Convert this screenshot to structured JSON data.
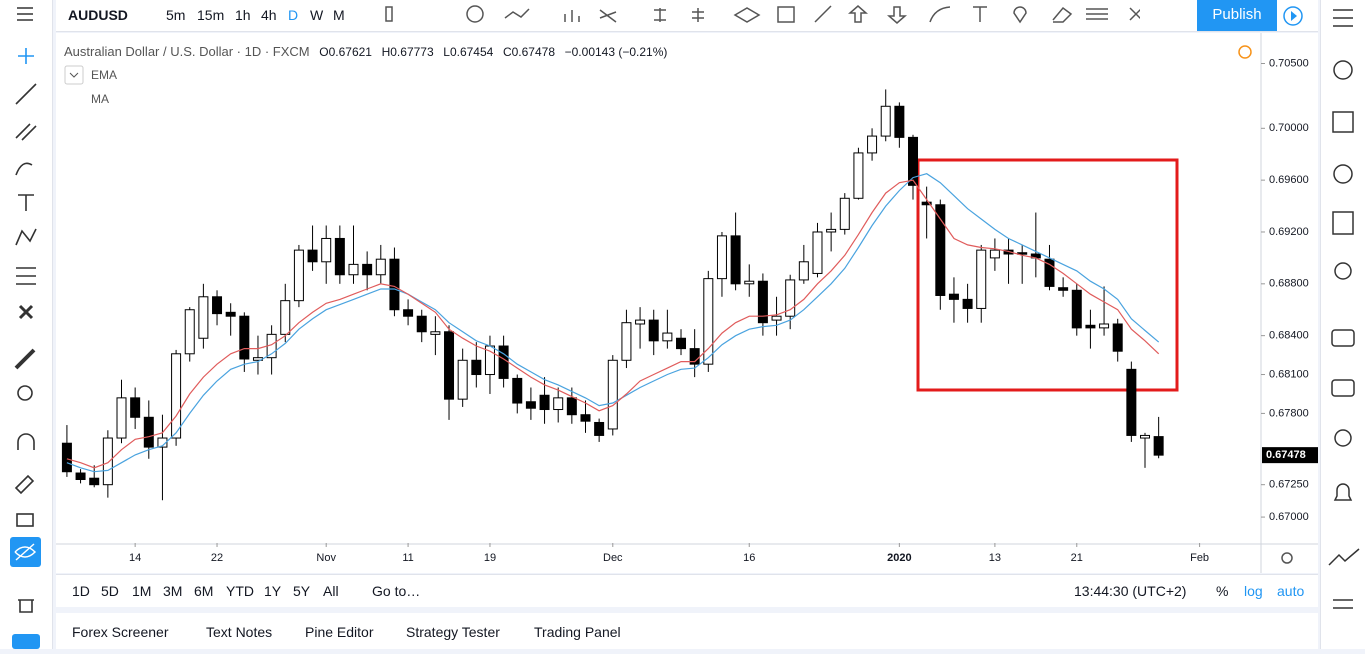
{
  "header": {
    "symbol": "AUDUSD",
    "intervals": [
      "5m",
      "15m",
      "1h",
      "4h",
      "D",
      "W",
      "M"
    ],
    "publish": "Publish"
  },
  "legend": {
    "title": "Australian Dollar / U.S. Dollar · 1D · FXCM",
    "open": "O0.67621",
    "high": "H0.67773",
    "low": "L0.67454",
    "close": "C0.67478",
    "change": "−0.00143 (−0.21%)"
  },
  "chart_data": {
    "type": "candlestick",
    "up_color": "#ffffff",
    "down_color": "#000000",
    "open": [
      0.6757,
      0.6734,
      0.673,
      0.6725,
      0.6761,
      0.6792,
      0.6777,
      0.6754,
      0.6761,
      0.6826,
      0.6838,
      0.687,
      0.6858,
      0.6855,
      0.6821,
      0.6823,
      0.6841,
      0.6867,
      0.6906,
      0.6897,
      0.6915,
      0.6887,
      0.6895,
      0.6887,
      0.6899,
      0.686,
      0.6855,
      0.6841,
      0.6843,
      0.6791,
      0.6821,
      0.681,
      0.6832,
      0.6807,
      0.6789,
      0.6794,
      0.6783,
      0.6792,
      0.6779,
      0.6773,
      0.6768,
      0.6821,
      0.6849,
      0.6852,
      0.6836,
      0.6838,
      0.683,
      0.6818,
      0.6884,
      0.6917,
      0.688,
      0.6882,
      0.6852,
      0.6855,
      0.6883,
      0.6888,
      0.692,
      0.6922,
      0.6946,
      0.6981,
      0.6994,
      0.7017,
      0.6993,
      0.6943,
      0.6941,
      0.6872,
      0.6868,
      0.6861,
      0.69,
      0.6906,
      0.6904,
      0.6903,
      0.6899,
      0.6877,
      0.6875,
      0.6848,
      0.6846,
      0.6849,
      0.6814,
      0.6761,
      0.67621
    ],
    "high": [
      0.6771,
      0.6737,
      0.674,
      0.6767,
      0.6806,
      0.68,
      0.679,
      0.6779,
      0.6829,
      0.6862,
      0.688,
      0.6875,
      0.6865,
      0.6858,
      0.684,
      0.6848,
      0.688,
      0.691,
      0.6925,
      0.6925,
      0.6925,
      0.6925,
      0.6905,
      0.691,
      0.6908,
      0.6868,
      0.686,
      0.6855,
      0.6848,
      0.683,
      0.6835,
      0.684,
      0.684,
      0.681,
      0.68,
      0.6808,
      0.68,
      0.68,
      0.679,
      0.6776,
      0.6825,
      0.686,
      0.6862,
      0.686,
      0.686,
      0.6845,
      0.6845,
      0.689,
      0.692,
      0.6935,
      0.6895,
      0.6888,
      0.687,
      0.6887,
      0.691,
      0.6927,
      0.6935,
      0.695,
      0.6985,
      0.7,
      0.703,
      0.702,
      0.6995,
      0.6955,
      0.6945,
      0.6885,
      0.688,
      0.691,
      0.6915,
      0.6915,
      0.691,
      0.6935,
      0.691,
      0.6885,
      0.688,
      0.686,
      0.6878,
      0.6853,
      0.682,
      0.6765,
      0.67773
    ],
    "low": [
      0.6731,
      0.6726,
      0.6723,
      0.6715,
      0.6757,
      0.6768,
      0.6745,
      0.6713,
      0.6755,
      0.682,
      0.683,
      0.6848,
      0.684,
      0.6812,
      0.681,
      0.681,
      0.6835,
      0.6862,
      0.689,
      0.688,
      0.688,
      0.688,
      0.6875,
      0.688,
      0.6855,
      0.6848,
      0.6835,
      0.6825,
      0.6775,
      0.6785,
      0.68,
      0.6795,
      0.68,
      0.678,
      0.6775,
      0.6772,
      0.6773,
      0.6772,
      0.6765,
      0.6758,
      0.6763,
      0.6815,
      0.683,
      0.6825,
      0.683,
      0.6825,
      0.6808,
      0.6812,
      0.687,
      0.6875,
      0.687,
      0.684,
      0.684,
      0.6845,
      0.688,
      0.6885,
      0.6905,
      0.6918,
      0.6945,
      0.6975,
      0.699,
      0.6985,
      0.6945,
      0.6915,
      0.686,
      0.685,
      0.685,
      0.685,
      0.689,
      0.688,
      0.688,
      0.6885,
      0.6875,
      0.687,
      0.684,
      0.683,
      0.684,
      0.682,
      0.6758,
      0.6738,
      0.67454
    ],
    "close": [
      0.6735,
      0.6729,
      0.6725,
      0.6761,
      0.6792,
      0.6777,
      0.6754,
      0.6761,
      0.6826,
      0.686,
      0.687,
      0.6857,
      0.6855,
      0.6822,
      0.6823,
      0.6841,
      0.6867,
      0.6906,
      0.6897,
      0.6915,
      0.6887,
      0.6895,
      0.6887,
      0.6899,
      0.686,
      0.6855,
      0.6843,
      0.6843,
      0.6791,
      0.6821,
      0.681,
      0.6832,
      0.6807,
      0.6788,
      0.6784,
      0.6783,
      0.6792,
      0.6779,
      0.6774,
      0.6763,
      0.6821,
      0.685,
      0.6852,
      0.6836,
      0.6842,
      0.683,
      0.6818,
      0.6884,
      0.6917,
      0.688,
      0.6882,
      0.685,
      0.6855,
      0.6883,
      0.6897,
      0.692,
      0.6922,
      0.6946,
      0.6981,
      0.6994,
      0.7017,
      0.6993,
      0.6956,
      0.6941,
      0.6871,
      0.6868,
      0.6861,
      0.6906,
      0.6906,
      0.6903,
      0.6903,
      0.69,
      0.6878,
      0.6875,
      0.6846,
      0.6846,
      0.6849,
      0.6828,
      0.6763,
      0.6763,
      0.67478
    ],
    "series": [
      {
        "name": "EMA",
        "color": "#4aa3df",
        "values": [
          0.6742,
          0.6738,
          0.6735,
          0.6736,
          0.6742,
          0.6748,
          0.6752,
          0.6755,
          0.6765,
          0.678,
          0.6794,
          0.6805,
          0.6814,
          0.6818,
          0.682,
          0.6826,
          0.6834,
          0.6845,
          0.6853,
          0.686,
          0.6864,
          0.6868,
          0.6872,
          0.6876,
          0.6876,
          0.6872,
          0.6866,
          0.686,
          0.685,
          0.6843,
          0.6836,
          0.6832,
          0.6826,
          0.6818,
          0.6812,
          0.6806,
          0.6802,
          0.6797,
          0.6792,
          0.6786,
          0.6788,
          0.6794,
          0.68,
          0.6805,
          0.681,
          0.6814,
          0.6815,
          0.6823,
          0.6833,
          0.684,
          0.6845,
          0.6847,
          0.6848,
          0.6852,
          0.686,
          0.687,
          0.688,
          0.6892,
          0.6908,
          0.6925,
          0.694,
          0.6952,
          0.6962,
          0.6965,
          0.6958,
          0.6948,
          0.6938,
          0.693,
          0.6922,
          0.6915,
          0.691,
          0.6905,
          0.69,
          0.6895,
          0.689,
          0.6882,
          0.6876,
          0.6868,
          0.6853,
          0.6844,
          0.6835
        ]
      },
      {
        "name": "MA",
        "color": "#e05c5c",
        "values": [
          0.6745,
          0.6742,
          0.6738,
          0.6742,
          0.6752,
          0.676,
          0.6762,
          0.6765,
          0.6778,
          0.6795,
          0.6808,
          0.6818,
          0.6826,
          0.683,
          0.683,
          0.6833,
          0.684,
          0.685,
          0.6858,
          0.6865,
          0.6868,
          0.6872,
          0.6876,
          0.688,
          0.6878,
          0.6872,
          0.6865,
          0.6858,
          0.6845,
          0.6838,
          0.6832,
          0.6828,
          0.6822,
          0.6815,
          0.6808,
          0.6802,
          0.6798,
          0.6793,
          0.6788,
          0.6782,
          0.6786,
          0.6795,
          0.6805,
          0.681,
          0.6815,
          0.682,
          0.682,
          0.683,
          0.6842,
          0.685,
          0.6855,
          0.6855,
          0.6856,
          0.686,
          0.6868,
          0.688,
          0.689,
          0.6902,
          0.6918,
          0.6935,
          0.695,
          0.6958,
          0.696,
          0.6945,
          0.693,
          0.6915,
          0.691,
          0.6908,
          0.6907,
          0.6905,
          0.6902,
          0.69,
          0.6895,
          0.6888,
          0.688,
          0.6872,
          0.6866,
          0.686,
          0.6845,
          0.6836,
          0.6826
        ]
      }
    ],
    "xlim": [
      -0.8,
      87.5
    ],
    "xticks": [
      {
        "value": 5,
        "label": "14"
      },
      {
        "value": 11,
        "label": "22"
      },
      {
        "value": 19,
        "label": "Nov"
      },
      {
        "value": 25,
        "label": "11"
      },
      {
        "value": 31,
        "label": "19"
      },
      {
        "value": 40,
        "label": "Dec"
      },
      {
        "value": 50,
        "label": "16"
      },
      {
        "value": 61,
        "label": "2020"
      },
      {
        "value": 68,
        "label": "13"
      },
      {
        "value": 74,
        "label": "21"
      },
      {
        "value": 83,
        "label": "Feb"
      }
    ],
    "ylim": [
      0.668,
      0.7072
    ],
    "yticks": [
      {
        "value": 0.705,
        "label": "0.70500"
      },
      {
        "value": 0.7,
        "label": "0.70000"
      },
      {
        "value": 0.696,
        "label": "0.69600"
      },
      {
        "value": 0.692,
        "label": "0.69200"
      },
      {
        "value": 0.688,
        "label": "0.68800"
      },
      {
        "value": 0.684,
        "label": "0.68400"
      },
      {
        "value": 0.681,
        "label": "0.68100"
      },
      {
        "value": 0.678,
        "label": "0.67800"
      },
      {
        "value": 0.6725,
        "label": "0.67250"
      },
      {
        "value": 0.67,
        "label": "0.67000"
      }
    ],
    "last_price": {
      "value": 0.67478,
      "label": "0.67478"
    }
  },
  "footer": {
    "ranges": [
      "1D",
      "5D",
      "1M",
      "3M",
      "6M",
      "YTD",
      "1Y",
      "5Y",
      "All"
    ],
    "goto": "Go to…",
    "time": "13:44:30 (UTC+2)",
    "percent": "%",
    "log": "log",
    "auto": "auto"
  },
  "tabs": [
    "Forex Screener",
    "Text Notes",
    "Pine Editor",
    "Strategy Tester",
    "Trading Panel"
  ]
}
